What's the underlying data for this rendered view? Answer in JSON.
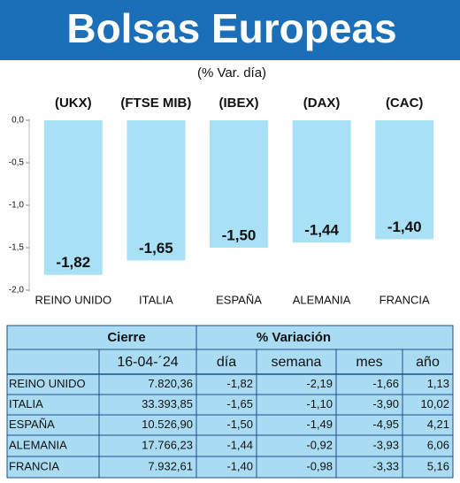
{
  "chart_data": {
    "type": "bar",
    "title": "Bolsas Europeas",
    "subtitle": "(% Var. día)",
    "categories": [
      "REINO UNIDO",
      "ITALIA",
      "ESPAÑA",
      "ALEMANIA",
      "FRANCIA"
    ],
    "index_labels": [
      "(UKX)",
      "(FTSE MIB)",
      "(IBEX)",
      "(DAX)",
      "(CAC)"
    ],
    "values": [
      -1.82,
      -1.65,
      -1.5,
      -1.44,
      -1.4
    ],
    "value_labels": [
      "-1,82",
      "-1,65",
      "-1,50",
      "-1,44",
      "-1,40"
    ],
    "color": "#a8e1f6",
    "ylim": [
      -2.0,
      0.0
    ],
    "yticks": [
      {
        "value": 0,
        "label": "0,0"
      },
      {
        "value": -0.5,
        "label": "-0,5"
      },
      {
        "value": -1.0,
        "label": "-1,0"
      },
      {
        "value": -1.5,
        "label": "-1,5"
      },
      {
        "value": -2.0,
        "label": "-2,0"
      }
    ]
  },
  "table": {
    "group_headers": [
      "Cierre",
      "% Variación"
    ],
    "columns": [
      "16-04-´24",
      "día",
      "semana",
      "mes",
      "año"
    ],
    "rows": [
      [
        "REINO UNIDO",
        "7.820,36",
        "-1,82",
        "-2,19",
        "-1,66",
        "1,13"
      ],
      [
        "ITALIA",
        "33.393,85",
        "-1,65",
        "-1,10",
        "-3,90",
        "10,02"
      ],
      [
        "ESPAÑA",
        "10.526,90",
        "-1,50",
        "-1,49",
        "-4,95",
        "4,21"
      ],
      [
        "ALEMANIA",
        "17.766,23",
        "-1,44",
        "-0,92",
        "-3,93",
        "6,06"
      ],
      [
        "FRANCIA",
        "7.932,61",
        "-1,40",
        "-0,98",
        "-3,33",
        "5,16"
      ]
    ]
  }
}
